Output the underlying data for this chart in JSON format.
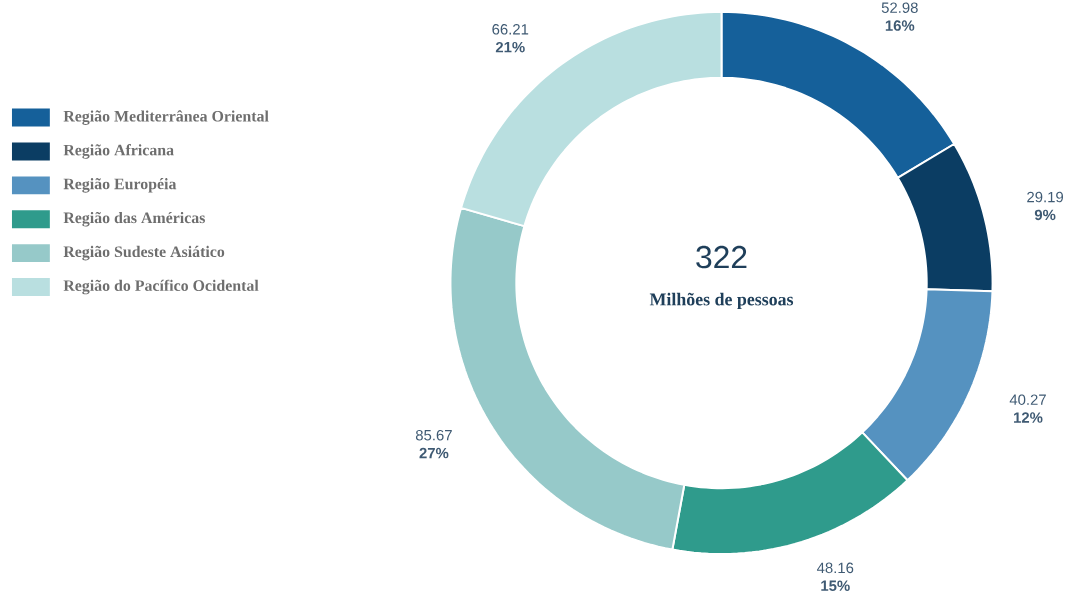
{
  "chart_data": {
    "type": "donut",
    "categories": [
      "Região Mediterrânea Oriental",
      "Região Africana",
      "Região Européia",
      "Região das Américas",
      "Região Sudeste Asiático",
      "Região do Pacífico Ocidental"
    ],
    "values": [
      52.98,
      29.19,
      40.27,
      48.16,
      85.67,
      66.21
    ],
    "colors": [
      "#15609a",
      "#0b3d63",
      "#5592c0",
      "#2f9b8c",
      "#96c9c9",
      "#b9dfe0"
    ],
    "value_labels": [
      "52.98 **16%**",
      "29.19 **9%**",
      "40.27 **12%**",
      "48.16 **15%**",
      "85.67 **27%**",
      "66.21 **21%**"
    ],
    "annotations": [
      "322",
      "Milhões de pessoas"
    ],
    "legend": "left"
  }
}
